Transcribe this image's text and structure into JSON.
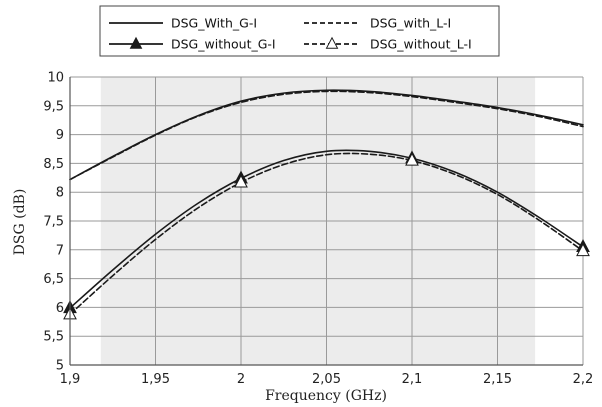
{
  "chart_data": {
    "type": "line",
    "xlabel": "Frequency (GHz)",
    "ylabel": "DSG (dB)",
    "xlim": [
      1.9,
      2.2
    ],
    "ylim": [
      5,
      10
    ],
    "x_ticks": [
      1.9,
      1.95,
      2.0,
      2.05,
      2.1,
      2.15,
      2.2
    ],
    "x_tick_labels": [
      "1,9",
      "1,95",
      "2",
      "2,05",
      "2,1",
      "2,15",
      "2,2"
    ],
    "y_ticks": [
      5,
      5.5,
      6,
      6.5,
      7,
      7.5,
      8,
      8.5,
      9,
      9.5,
      10
    ],
    "y_tick_labels": [
      "5",
      "5,5",
      "6",
      "6,5",
      "7",
      "7,5",
      "8",
      "8,5",
      "9",
      "9,5",
      "10"
    ],
    "grid": true,
    "shaded_band": [
      1.918,
      2.172
    ],
    "legend_placement": "top, outside the plot",
    "series": [
      {
        "name": "DSG_With_G-I",
        "style": "solid",
        "marker": "none",
        "color": "#1a1a1a",
        "x": [
          1.9,
          1.925,
          1.95,
          1.975,
          2.0,
          2.025,
          2.05,
          2.075,
          2.1,
          2.125,
          2.15,
          2.175,
          2.2
        ],
        "y": [
          8.22,
          8.62,
          9.0,
          9.33,
          9.58,
          9.72,
          9.77,
          9.75,
          9.68,
          9.58,
          9.47,
          9.33,
          9.17
        ]
      },
      {
        "name": "DSG_with_L-I",
        "style": "dashed",
        "marker": "none",
        "color": "#1a1a1a",
        "x": [
          1.9,
          1.925,
          1.95,
          1.975,
          2.0,
          2.025,
          2.05,
          2.075,
          2.1,
          2.125,
          2.15,
          2.175,
          2.2
        ],
        "y": [
          8.22,
          8.61,
          8.99,
          9.32,
          9.56,
          9.7,
          9.75,
          9.73,
          9.66,
          9.56,
          9.45,
          9.31,
          9.14
        ]
      },
      {
        "name": "DSG_without_G-I",
        "style": "solid",
        "marker": "filled-triangle",
        "color": "#1a1a1a",
        "x": [
          1.9,
          1.925,
          1.95,
          1.975,
          2.0,
          2.025,
          2.05,
          2.075,
          2.1,
          2.125,
          2.15,
          2.175,
          2.2
        ],
        "y": [
          5.99,
          6.65,
          7.27,
          7.81,
          8.24,
          8.55,
          8.71,
          8.71,
          8.59,
          8.35,
          8.0,
          7.55,
          7.05
        ],
        "marker_x": [
          1.9,
          2.0,
          2.1,
          2.2
        ]
      },
      {
        "name": "DSG_without_L-I",
        "style": "dashed",
        "marker": "open-triangle",
        "color": "#1a1a1a",
        "x": [
          1.9,
          1.925,
          1.95,
          1.975,
          2.0,
          2.025,
          2.05,
          2.075,
          2.1,
          2.125,
          2.15,
          2.175,
          2.2
        ],
        "y": [
          5.88,
          6.55,
          7.18,
          7.73,
          8.17,
          8.48,
          8.65,
          8.66,
          8.55,
          8.31,
          7.96,
          7.5,
          6.98
        ],
        "marker_x": [
          1.9,
          2.0,
          2.1,
          2.2
        ]
      }
    ]
  }
}
